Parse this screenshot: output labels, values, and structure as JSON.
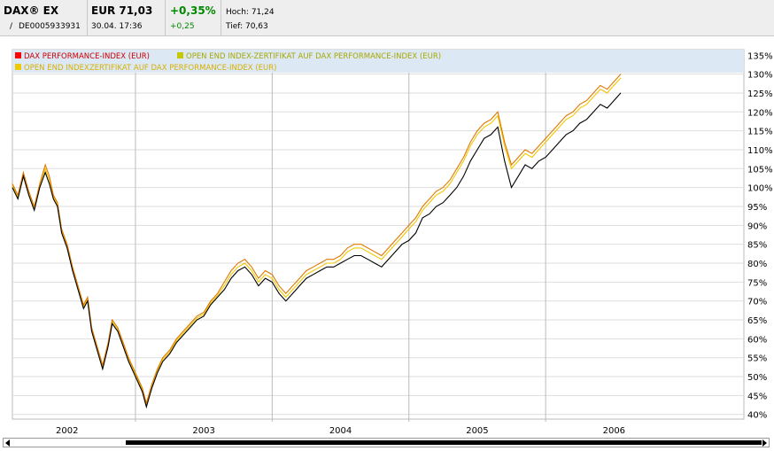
{
  "quote": {
    "name": "DAX® EX",
    "isin_prefix": "/",
    "isin": "DE0005933931",
    "price": "EUR 71,03",
    "datetime": "30.04. 17:36",
    "change_pct": "+0,35%",
    "change_abs": "+0,25",
    "high": "Hoch: 71,24",
    "low": "Tief: 70,63"
  },
  "colors": {
    "dax": "#000000",
    "cert1": "#e07800",
    "cert2": "#f0c800",
    "grid": "#dddddd",
    "plot_bg": "#ffffff",
    "legend_bg": "#dce8f4"
  },
  "chart_data": {
    "type": "line",
    "title": "",
    "xlabel": "",
    "ylabel": "",
    "legend_placement": "top-left",
    "grid": true,
    "x_ticks": [
      "2002",
      "2003",
      "2004",
      "2005",
      "2006"
    ],
    "y_ticks": [
      "40%",
      "45%",
      "50%",
      "55%",
      "60%",
      "65%",
      "70%",
      "75%",
      "80%",
      "85%",
      "90%",
      "95%",
      "100%",
      "105%",
      "110%",
      "115%",
      "120%",
      "125%",
      "130%",
      "135%"
    ],
    "xlim": [
      2001.6,
      2006.95
    ],
    "ylim": [
      39,
      136
    ],
    "series": [
      {
        "name": "DAX PERFORMANCE-INDEX (EUR)",
        "legend_color": "#ff0000",
        "color": "#000000",
        "points": [
          [
            2001.6,
            100
          ],
          [
            2001.64,
            97
          ],
          [
            2001.68,
            103
          ],
          [
            2001.72,
            98
          ],
          [
            2001.76,
            94
          ],
          [
            2001.8,
            100
          ],
          [
            2001.84,
            104
          ],
          [
            2001.87,
            101
          ],
          [
            2001.9,
            97
          ],
          [
            2001.93,
            95
          ],
          [
            2001.96,
            88
          ],
          [
            2002.0,
            84
          ],
          [
            2002.04,
            78
          ],
          [
            2002.08,
            73
          ],
          [
            2002.12,
            68
          ],
          [
            2002.15,
            70
          ],
          [
            2002.18,
            62
          ],
          [
            2002.22,
            57
          ],
          [
            2002.26,
            52
          ],
          [
            2002.3,
            58
          ],
          [
            2002.33,
            64
          ],
          [
            2002.37,
            62
          ],
          [
            2002.41,
            58
          ],
          [
            2002.45,
            54
          ],
          [
            2002.5,
            50
          ],
          [
            2002.55,
            46
          ],
          [
            2002.58,
            42
          ],
          [
            2002.62,
            47
          ],
          [
            2002.66,
            51
          ],
          [
            2002.7,
            54
          ],
          [
            2002.75,
            56
          ],
          [
            2002.8,
            59
          ],
          [
            2002.85,
            61
          ],
          [
            2002.9,
            63
          ],
          [
            2002.95,
            65
          ],
          [
            2003.0,
            66
          ],
          [
            2003.05,
            69
          ],
          [
            2003.1,
            71
          ],
          [
            2003.15,
            73
          ],
          [
            2003.2,
            76
          ],
          [
            2003.25,
            78
          ],
          [
            2003.3,
            79
          ],
          [
            2003.35,
            77
          ],
          [
            2003.4,
            74
          ],
          [
            2003.45,
            76
          ],
          [
            2003.5,
            75
          ],
          [
            2003.55,
            72
          ],
          [
            2003.6,
            70
          ],
          [
            2003.65,
            72
          ],
          [
            2003.7,
            74
          ],
          [
            2003.75,
            76
          ],
          [
            2003.8,
            77
          ],
          [
            2003.85,
            78
          ],
          [
            2003.9,
            79
          ],
          [
            2003.95,
            79
          ],
          [
            2004.0,
            80
          ],
          [
            2004.05,
            81
          ],
          [
            2004.1,
            82
          ],
          [
            2004.15,
            82
          ],
          [
            2004.2,
            81
          ],
          [
            2004.25,
            80
          ],
          [
            2004.3,
            79
          ],
          [
            2004.35,
            81
          ],
          [
            2004.4,
            83
          ],
          [
            2004.45,
            85
          ],
          [
            2004.5,
            86
          ],
          [
            2004.55,
            88
          ],
          [
            2004.6,
            92
          ],
          [
            2004.65,
            93
          ],
          [
            2004.7,
            95
          ],
          [
            2004.75,
            96
          ],
          [
            2004.8,
            98
          ],
          [
            2004.85,
            100
          ],
          [
            2004.9,
            103
          ],
          [
            2004.95,
            107
          ],
          [
            2005.0,
            110
          ],
          [
            2005.05,
            113
          ],
          [
            2005.1,
            114
          ],
          [
            2005.15,
            116
          ],
          [
            2005.2,
            107
          ],
          [
            2005.25,
            100
          ],
          [
            2005.3,
            103
          ],
          [
            2005.35,
            106
          ],
          [
            2005.4,
            105
          ],
          [
            2005.45,
            107
          ],
          [
            2005.5,
            108
          ],
          [
            2005.55,
            110
          ],
          [
            2005.6,
            112
          ],
          [
            2005.65,
            114
          ],
          [
            2005.7,
            115
          ],
          [
            2005.75,
            117
          ],
          [
            2005.8,
            118
          ],
          [
            2005.85,
            120
          ],
          [
            2005.9,
            122
          ],
          [
            2005.95,
            121
          ],
          [
            2006.0,
            123
          ],
          [
            2006.05,
            125
          ]
        ]
      },
      {
        "name": "OPEN END INDEX-ZERTIFIKAT AUF DAX PERFORMANCE-INDEX (EUR)",
        "legend_color": "#c8c800",
        "color": "#e07800",
        "points": [
          [
            2001.6,
            101
          ],
          [
            2001.64,
            98
          ],
          [
            2001.68,
            104
          ],
          [
            2001.72,
            99
          ],
          [
            2001.76,
            95
          ],
          [
            2001.8,
            101
          ],
          [
            2001.84,
            106
          ],
          [
            2001.87,
            103
          ],
          [
            2001.9,
            98
          ],
          [
            2001.93,
            96
          ],
          [
            2001.96,
            89
          ],
          [
            2002.0,
            85
          ],
          [
            2002.04,
            79
          ],
          [
            2002.08,
            74
          ],
          [
            2002.12,
            69
          ],
          [
            2002.15,
            71
          ],
          [
            2002.18,
            63
          ],
          [
            2002.22,
            58
          ],
          [
            2002.26,
            53
          ],
          [
            2002.3,
            59
          ],
          [
            2002.33,
            65
          ],
          [
            2002.37,
            63
          ],
          [
            2002.41,
            59
          ],
          [
            2002.45,
            55
          ],
          [
            2002.5,
            51
          ],
          [
            2002.55,
            47
          ],
          [
            2002.58,
            43
          ],
          [
            2002.62,
            48
          ],
          [
            2002.66,
            52
          ],
          [
            2002.7,
            55
          ],
          [
            2002.75,
            57
          ],
          [
            2002.8,
            60
          ],
          [
            2002.85,
            62
          ],
          [
            2002.9,
            64
          ],
          [
            2002.95,
            66
          ],
          [
            2003.0,
            67
          ],
          [
            2003.05,
            70
          ],
          [
            2003.1,
            72
          ],
          [
            2003.15,
            75
          ],
          [
            2003.2,
            78
          ],
          [
            2003.25,
            80
          ],
          [
            2003.3,
            81
          ],
          [
            2003.35,
            79
          ],
          [
            2003.4,
            76
          ],
          [
            2003.45,
            78
          ],
          [
            2003.5,
            77
          ],
          [
            2003.55,
            74
          ],
          [
            2003.6,
            72
          ],
          [
            2003.65,
            74
          ],
          [
            2003.7,
            76
          ],
          [
            2003.75,
            78
          ],
          [
            2003.8,
            79
          ],
          [
            2003.85,
            80
          ],
          [
            2003.9,
            81
          ],
          [
            2003.95,
            81
          ],
          [
            2004.0,
            82
          ],
          [
            2004.05,
            84
          ],
          [
            2004.1,
            85
          ],
          [
            2004.15,
            85
          ],
          [
            2004.2,
            84
          ],
          [
            2004.25,
            83
          ],
          [
            2004.3,
            82
          ],
          [
            2004.35,
            84
          ],
          [
            2004.4,
            86
          ],
          [
            2004.45,
            88
          ],
          [
            2004.5,
            90
          ],
          [
            2004.55,
            92
          ],
          [
            2004.6,
            95
          ],
          [
            2004.65,
            97
          ],
          [
            2004.7,
            99
          ],
          [
            2004.75,
            100
          ],
          [
            2004.8,
            102
          ],
          [
            2004.85,
            105
          ],
          [
            2004.9,
            108
          ],
          [
            2004.95,
            112
          ],
          [
            2005.0,
            115
          ],
          [
            2005.05,
            117
          ],
          [
            2005.1,
            118
          ],
          [
            2005.15,
            120
          ],
          [
            2005.2,
            112
          ],
          [
            2005.25,
            106
          ],
          [
            2005.3,
            108
          ],
          [
            2005.35,
            110
          ],
          [
            2005.4,
            109
          ],
          [
            2005.45,
            111
          ],
          [
            2005.5,
            113
          ],
          [
            2005.55,
            115
          ],
          [
            2005.6,
            117
          ],
          [
            2005.65,
            119
          ],
          [
            2005.7,
            120
          ],
          [
            2005.75,
            122
          ],
          [
            2005.8,
            123
          ],
          [
            2005.85,
            125
          ],
          [
            2005.9,
            127
          ],
          [
            2005.95,
            126
          ],
          [
            2006.0,
            128
          ],
          [
            2006.05,
            130
          ]
        ]
      },
      {
        "name": "OPEN END INDEXZERTIFIKAT AUF DAX PERFORMANCE-INDEX (EUR)",
        "legend_color": "#f0c800",
        "color": "#f0c800",
        "points": [
          [
            2001.6,
            100.5
          ],
          [
            2001.64,
            97.5
          ],
          [
            2001.68,
            103.5
          ],
          [
            2001.72,
            98.5
          ],
          [
            2001.76,
            94.5
          ],
          [
            2001.8,
            100.5
          ],
          [
            2001.84,
            105
          ],
          [
            2001.87,
            102
          ],
          [
            2001.9,
            97.5
          ],
          [
            2001.93,
            95.5
          ],
          [
            2001.96,
            88.5
          ],
          [
            2002.0,
            84.5
          ],
          [
            2002.04,
            78.5
          ],
          [
            2002.08,
            73.5
          ],
          [
            2002.12,
            68.5
          ],
          [
            2002.15,
            70.5
          ],
          [
            2002.18,
            62.5
          ],
          [
            2002.22,
            57.5
          ],
          [
            2002.26,
            52.5
          ],
          [
            2002.3,
            58.5
          ],
          [
            2002.33,
            64.5
          ],
          [
            2002.37,
            62.5
          ],
          [
            2002.41,
            58.5
          ],
          [
            2002.45,
            54.5
          ],
          [
            2002.5,
            50.5
          ],
          [
            2002.55,
            46.5
          ],
          [
            2002.58,
            42.5
          ],
          [
            2002.62,
            47.5
          ],
          [
            2002.66,
            51.5
          ],
          [
            2002.7,
            54.5
          ],
          [
            2002.75,
            56.5
          ],
          [
            2002.8,
            59.5
          ],
          [
            2002.85,
            61.5
          ],
          [
            2002.9,
            63.5
          ],
          [
            2002.95,
            65.5
          ],
          [
            2003.0,
            66.5
          ],
          [
            2003.05,
            69.5
          ],
          [
            2003.1,
            71.5
          ],
          [
            2003.15,
            74
          ],
          [
            2003.2,
            77
          ],
          [
            2003.25,
            79
          ],
          [
            2003.3,
            80
          ],
          [
            2003.35,
            78
          ],
          [
            2003.4,
            75
          ],
          [
            2003.45,
            77
          ],
          [
            2003.5,
            76
          ],
          [
            2003.55,
            73
          ],
          [
            2003.6,
            71
          ],
          [
            2003.65,
            73
          ],
          [
            2003.7,
            75
          ],
          [
            2003.75,
            77
          ],
          [
            2003.8,
            78
          ],
          [
            2003.85,
            79
          ],
          [
            2003.9,
            80
          ],
          [
            2003.95,
            80
          ],
          [
            2004.0,
            81
          ],
          [
            2004.05,
            83
          ],
          [
            2004.1,
            84
          ],
          [
            2004.15,
            84
          ],
          [
            2004.2,
            83
          ],
          [
            2004.25,
            82
          ],
          [
            2004.3,
            81
          ],
          [
            2004.35,
            83
          ],
          [
            2004.4,
            85
          ],
          [
            2004.45,
            87
          ],
          [
            2004.5,
            89
          ],
          [
            2004.55,
            91
          ],
          [
            2004.6,
            94
          ],
          [
            2004.65,
            96
          ],
          [
            2004.7,
            98
          ],
          [
            2004.75,
            99
          ],
          [
            2004.8,
            101
          ],
          [
            2004.85,
            104
          ],
          [
            2004.9,
            107
          ],
          [
            2004.95,
            111
          ],
          [
            2005.0,
            114
          ],
          [
            2005.05,
            116
          ],
          [
            2005.1,
            117
          ],
          [
            2005.15,
            119
          ],
          [
            2005.2,
            111
          ],
          [
            2005.25,
            105
          ],
          [
            2005.3,
            107
          ],
          [
            2005.35,
            109
          ],
          [
            2005.4,
            108
          ],
          [
            2005.45,
            110
          ],
          [
            2005.5,
            112
          ],
          [
            2005.55,
            114
          ],
          [
            2005.6,
            116
          ],
          [
            2005.65,
            118
          ],
          [
            2005.7,
            119
          ],
          [
            2005.75,
            121
          ],
          [
            2005.8,
            122
          ],
          [
            2005.85,
            124
          ],
          [
            2005.9,
            126
          ],
          [
            2005.95,
            125
          ],
          [
            2006.0,
            127
          ],
          [
            2006.05,
            129
          ]
        ]
      }
    ]
  }
}
